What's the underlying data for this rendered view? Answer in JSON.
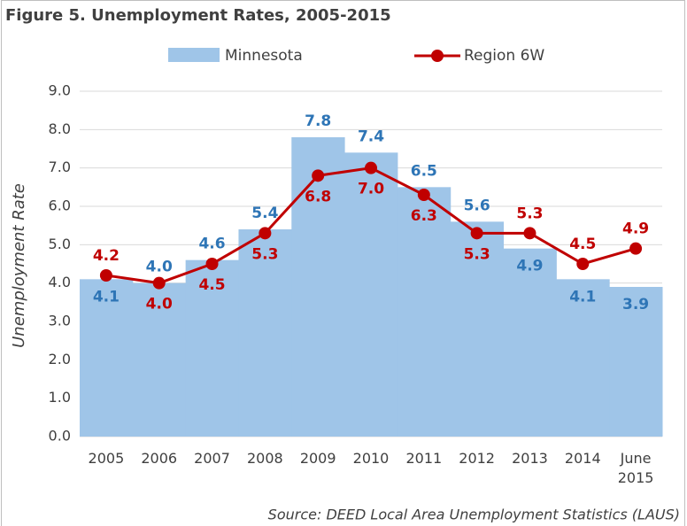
{
  "chart_data": {
    "type": "bar_line",
    "title": "Figure 5. Unemployment Rates, 2005-2015",
    "ylabel": "Unemployment Rate",
    "source": "Source: DEED Local Area Unemployment Statistics (LAUS)",
    "categories": [
      "2005",
      "2006",
      "2007",
      "2008",
      "2009",
      "2010",
      "2011",
      "2012",
      "2013",
      "2014",
      "June 2015"
    ],
    "series": [
      {
        "name": "Minnesota",
        "type": "step-area",
        "color": "#9fc5e8",
        "label_color": "#2e75b6",
        "values": [
          4.1,
          4.0,
          4.6,
          5.4,
          7.8,
          7.4,
          6.5,
          5.6,
          4.9,
          4.1,
          3.9
        ],
        "value_labels": [
          "4.1",
          "4.0",
          "4.6",
          "5.4",
          "7.8",
          "7.4",
          "6.5",
          "5.6",
          "4.9",
          "4.1",
          "3.9"
        ]
      },
      {
        "name": "Region 6W",
        "type": "line",
        "color": "#c00000",
        "label_color": "#c00000",
        "values": [
          4.2,
          4.0,
          4.5,
          5.3,
          6.8,
          7.0,
          6.3,
          5.3,
          5.3,
          4.5,
          4.9
        ],
        "value_labels": [
          "4.2",
          "4.0",
          "4.5",
          "5.3",
          "6.8",
          "7.0",
          "6.3",
          "5.3",
          "5.3",
          "4.5",
          "4.9"
        ]
      }
    ],
    "ylim": [
      0,
      9
    ],
    "yticks": [
      {
        "value": 0,
        "label": "0.0"
      },
      {
        "value": 1,
        "label": "1.0"
      },
      {
        "value": 2,
        "label": "2.0"
      },
      {
        "value": 3,
        "label": "3.0"
      },
      {
        "value": 4,
        "label": "4.0"
      },
      {
        "value": 5,
        "label": "5.0"
      },
      {
        "value": 6,
        "label": "6.0"
      },
      {
        "value": 7,
        "label": "7.0"
      },
      {
        "value": 8,
        "label": "8.0"
      },
      {
        "value": 9,
        "label": "9.0"
      }
    ],
    "grid": true,
    "legend": "top"
  }
}
